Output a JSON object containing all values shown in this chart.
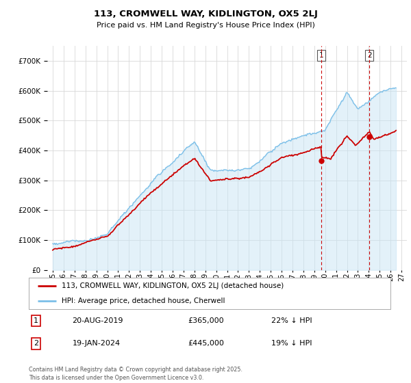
{
  "title": "113, CROMWELL WAY, KIDLINGTON, OX5 2LJ",
  "subtitle": "Price paid vs. HM Land Registry's House Price Index (HPI)",
  "legend_line1": "113, CROMWELL WAY, KIDLINGTON, OX5 2LJ (detached house)",
  "legend_line2": "HPI: Average price, detached house, Cherwell",
  "annotation1_date": "20-AUG-2019",
  "annotation1_price": "£365,000",
  "annotation1_hpi": "22% ↓ HPI",
  "annotation2_date": "19-JAN-2024",
  "annotation2_price": "£445,000",
  "annotation2_hpi": "19% ↓ HPI",
  "footnote": "Contains HM Land Registry data © Crown copyright and database right 2025.\nThis data is licensed under the Open Government Licence v3.0.",
  "hpi_color": "#7bbfe8",
  "hpi_fill_color": "#c8e4f5",
  "price_color": "#cc0000",
  "vline_color": "#cc0000",
  "background_color": "#ffffff",
  "grid_color": "#d8d8d8",
  "ylim": [
    0,
    750000
  ],
  "yticks": [
    0,
    100000,
    200000,
    300000,
    400000,
    500000,
    600000,
    700000
  ],
  "xlim_start": 1994.5,
  "xlim_end": 2027.5,
  "xticks": [
    1995,
    1996,
    1997,
    1998,
    1999,
    2000,
    2001,
    2002,
    2003,
    2004,
    2005,
    2006,
    2007,
    2008,
    2009,
    2010,
    2011,
    2012,
    2013,
    2014,
    2015,
    2016,
    2017,
    2018,
    2019,
    2020,
    2021,
    2022,
    2023,
    2024,
    2025,
    2026,
    2027
  ],
  "sale1_x": 2019.638,
  "sale1_y": 365000,
  "sale2_x": 2024.05,
  "sale2_y": 445000,
  "hpi_shade_alpha": 0.5
}
